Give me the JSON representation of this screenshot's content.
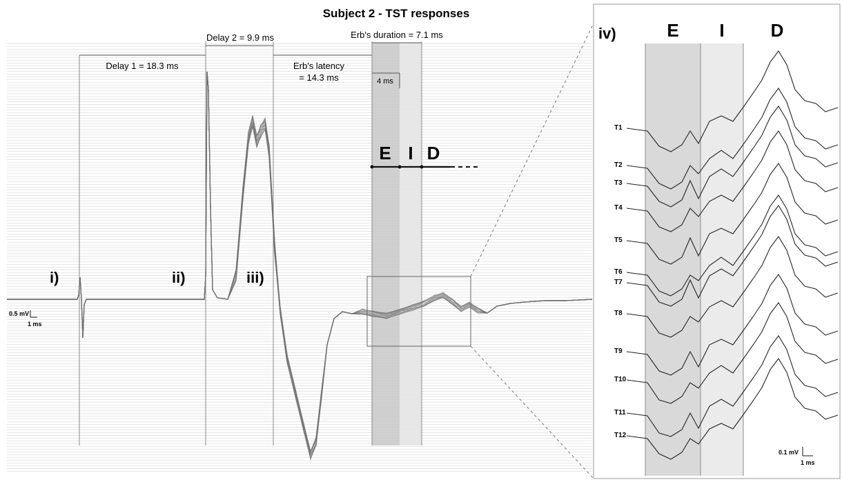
{
  "chart_data": {
    "type": "line",
    "title": "Subject 2 - TST responses",
    "panels": [
      {
        "label": "i)"
      },
      {
        "label": "ii)"
      },
      {
        "label": "iii)"
      },
      {
        "label": "iv)"
      }
    ],
    "intervals": {
      "delay1": "Delay 1 = 18.3 ms",
      "delay2": "Delay 2 = 9.9 ms",
      "erb_latency_line1": "Erb's latency",
      "erb_latency_line2": "= 14.3 ms",
      "erb_duration": "Erb's duration = 7.1 ms",
      "window": "4 ms"
    },
    "delay1_ms": 18.3,
    "delay2_ms": 9.9,
    "erb_latency_ms": 14.3,
    "erb_duration_ms": 7.1,
    "window_ms": 4,
    "phases": [
      "E",
      "I",
      "D"
    ],
    "scale_main": {
      "amplitude": "0.5 mV",
      "time": "1 ms"
    },
    "scale_inset": {
      "amplitude": "0.1 mV",
      "time": "1 ms"
    },
    "trials": [
      "T1",
      "T2",
      "T3",
      "T4",
      "T5",
      "T6",
      "T7",
      "T8",
      "T9",
      "T10",
      "T11",
      "T12"
    ]
  }
}
